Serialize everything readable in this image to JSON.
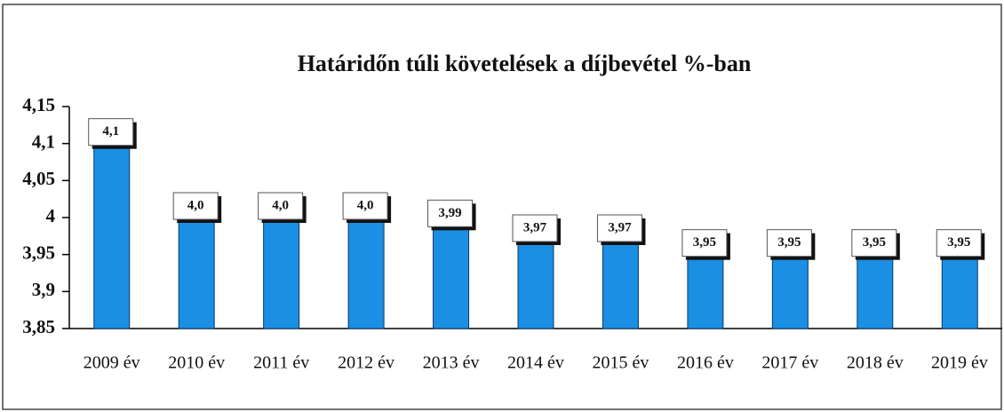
{
  "chart_data": {
    "type": "bar",
    "title": "Határidőn túli követelések a díjbevétel %-ban",
    "categories": [
      "2009 év",
      "2010 év",
      "2011 év",
      "2012 év",
      "2013 év",
      "2014 év",
      "2015 év",
      "2016 év",
      "2017 év",
      "2018 év",
      "2019 év"
    ],
    "values": [
      4.1,
      4.0,
      4.0,
      4.0,
      3.99,
      3.97,
      3.97,
      3.95,
      3.95,
      3.95,
      3.95
    ],
    "value_labels": [
      "4,1",
      "4,0",
      "4,0",
      "4,0",
      "3,99",
      "3,97",
      "3,97",
      "3,95",
      "3,95",
      "3,95",
      "3,95"
    ],
    "color": "#1a8fe3",
    "ylim": [
      3.85,
      4.15
    ],
    "yticks": [
      {
        "value": 3.85,
        "label": "3,85"
      },
      {
        "value": 3.9,
        "label": "3,9"
      },
      {
        "value": 3.95,
        "label": "3,95"
      },
      4,
      {
        "value": 4.05,
        "label": "4,05"
      },
      {
        "value": 4.1,
        "label": "4,1"
      },
      {
        "value": 4.15,
        "label": "4,15"
      }
    ],
    "grid": false
  }
}
